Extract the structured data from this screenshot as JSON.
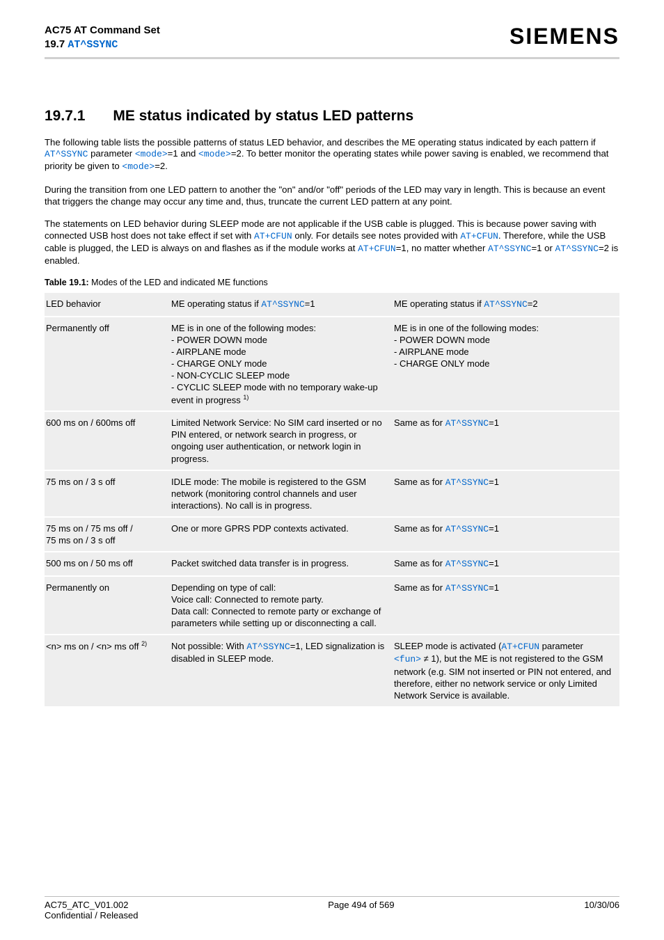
{
  "header": {
    "title_line1": "AC75 AT Command Set",
    "title_line2_prefix": "19.7 ",
    "title_line2_link": "AT^SSYNC",
    "brand": "SIEMENS"
  },
  "section": {
    "number": "19.7.1",
    "title": "ME status indicated by status LED patterns"
  },
  "para1": {
    "t1": "The following table lists the possible patterns of status LED behavior, and describes the ME operating status indicated by each pattern if ",
    "c1": "AT^SSYNC",
    "t2": " parameter ",
    "c2": "<mode>",
    "t3": "=1 and ",
    "c3": "<mode>",
    "t4": "=2. To better monitor the operating states while power saving is enabled, we recommend that priority be given to ",
    "c4": "<mode>",
    "t5": "=2."
  },
  "para2": "During the transition from one LED pattern to another the \"on\" and/or \"off\" periods of the LED may vary in length. This is because an event that triggers the change may occur any time and, thus, truncate the current LED pattern at any point.",
  "para3": {
    "t1": "The statements on LED behavior during SLEEP mode are not applicable if the USB cable is plugged. This is because power saving with connected USB host does not take effect if set with ",
    "c1": "AT+CFUN",
    "t2": " only. For details see notes provided with ",
    "c2": "AT+CFUN",
    "t3": ". Therefore, while the USB cable is plugged, the LED is always on and flashes as if the module works at ",
    "c3": "AT+CFUN",
    "t4": "=1, no matter whether ",
    "c4": "AT^SSYNC",
    "t5": "=1 or ",
    "c5": "AT^SSYNC",
    "t6": "=2 is enabled."
  },
  "table_caption": {
    "label": "Table 19.1:",
    "text": "  Modes of the LED and indicated ME functions"
  },
  "table": {
    "head": {
      "c1": "LED behavior",
      "c2_pre": "ME operating status if ",
      "c2_code": "AT^SSYNC",
      "c2_post": "=1",
      "c3_pre": "ME operating status if ",
      "c3_code": "AT^SSYNC",
      "c3_post": "=2"
    },
    "rows": [
      {
        "c1": "Permanently off",
        "c2": "ME is in one of the following modes:\n- POWER DOWN mode\n- AIRPLANE mode\n- CHARGE ONLY mode\n- NON-CYCLIC SLEEP mode\n- CYCLIC SLEEP mode with no temporary wake-up event in progress ",
        "c2_sup": "1)",
        "c3": "ME is in one of the following modes:\n- POWER DOWN mode\n- AIRPLANE mode\n- CHARGE ONLY mode"
      },
      {
        "c1": "600 ms on / 600ms off",
        "c2": "Limited Network Service: No SIM card inserted or no PIN entered, or network search in progress, or ongoing user authentication, or network login in progress.",
        "c3_pre": "Same as for ",
        "c3_code": "AT^SSYNC",
        "c3_post": "=1"
      },
      {
        "c1": "75 ms on / 3 s off",
        "c2": "IDLE mode: The mobile is registered to the GSM network (monitoring control channels and user interactions). No call is in progress.",
        "c3_pre": "Same as for ",
        "c3_code": "AT^SSYNC",
        "c3_post": "=1"
      },
      {
        "c1": "75 ms on / 75 ms off /\n75 ms on / 3 s off",
        "c2": "One or more GPRS PDP contexts activated.",
        "c3_pre": "Same as for ",
        "c3_code": "AT^SSYNC",
        "c3_post": "=1"
      },
      {
        "c1": "500 ms on / 50 ms off",
        "c2": "Packet switched data transfer is in progress.",
        "c3_pre": "Same as for ",
        "c3_code": "AT^SSYNC",
        "c3_post": "=1"
      },
      {
        "c1": "Permanently on",
        "c2": "Depending on type of call:\nVoice call: Connected to remote party.\nData call: Connected to remote party or exchange of parameters while setting up or disconnecting a call.",
        "c3_pre": "Same as for ",
        "c3_code": "AT^SSYNC",
        "c3_post": "=1"
      },
      {
        "c1_pre": "<n> ms on / <n> ms off ",
        "c1_sup": "2)",
        "c2_pre": "Not possible: With ",
        "c2_code": "AT^SSYNC",
        "c2_post": "=1, LED signalization is disabled in SLEEP mode.",
        "c3_t1": "SLEEP mode is activated (",
        "c3_c1": "AT+CFUN",
        "c3_t2": " parameter ",
        "c3_c2": "<fun>",
        "c3_t3": " ≠ 1), but the ME is not registered to the GSM network (e.g. SIM not inserted or PIN not entered, and therefore, either no network service or only Limited Network Service is available."
      }
    ]
  },
  "footer": {
    "left_line1": "AC75_ATC_V01.002",
    "left_line2": "Confidential / Released",
    "center": "Page 494 of 569",
    "right": "10/30/06"
  },
  "colors": {
    "link": "#0066cc",
    "row_bg": "#eeeeee",
    "hr": "#d0d0d0"
  }
}
